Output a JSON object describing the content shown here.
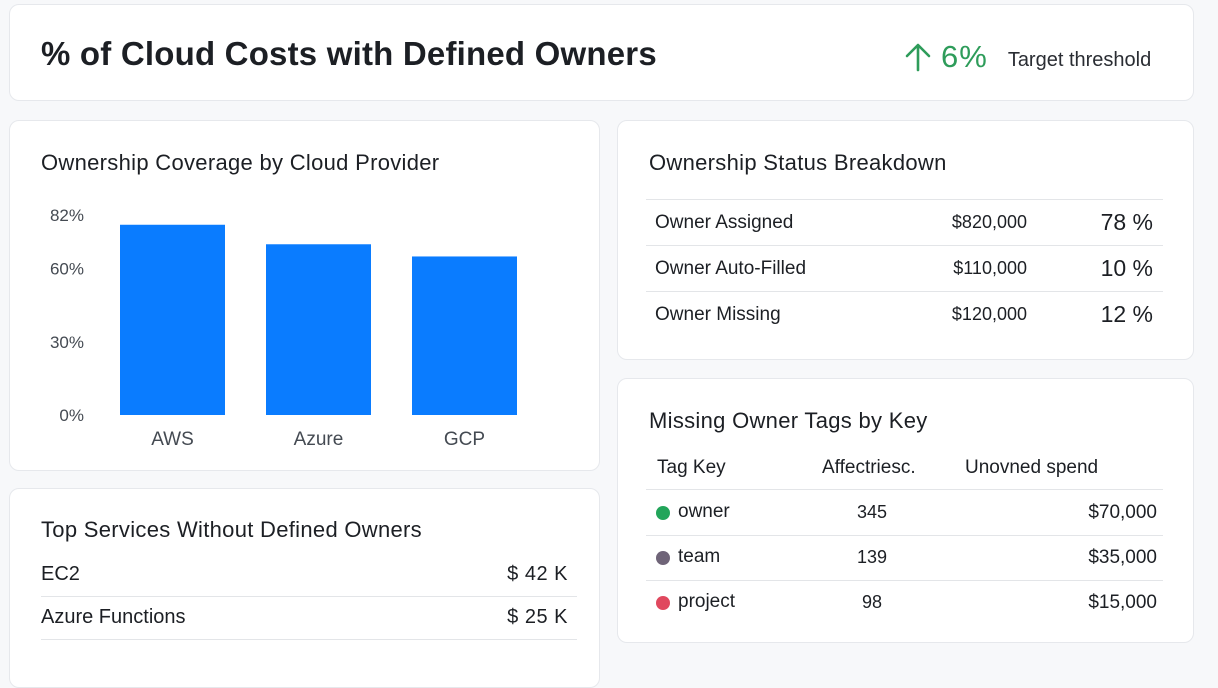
{
  "header": {
    "title": "% of Cloud Costs with Defined Owners",
    "kpi_value": "6%",
    "kpi_label": "Target threshold",
    "kpi_color": "#2e9c5a"
  },
  "coverage_card": {
    "title": "Ownership Coverage by Cloud Provider"
  },
  "chart_data": {
    "type": "bar",
    "categories": [
      "AWS",
      "Azure",
      "GCP"
    ],
    "values": [
      78,
      70,
      65
    ],
    "tick_labels": [
      "0%",
      "30%",
      "60%",
      "82%"
    ],
    "ylim": [
      0,
      82
    ],
    "bar_color": "#0a7cff",
    "grid": false
  },
  "status_card": {
    "title": "Ownership Status Breakdown",
    "rows": [
      {
        "name": "Owner Assigned",
        "amount": "$820,000",
        "pct": "78 %"
      },
      {
        "name": "Owner Auto-Filled",
        "amount": "$110,000",
        "pct": "10 %"
      },
      {
        "name": "Owner Missing",
        "amount": "$120,000",
        "pct": "12 %"
      }
    ]
  },
  "tags_card": {
    "title": "Missing Owner Tags by Key",
    "headers": {
      "key": "Tag Key",
      "affected": "Affectriesc.",
      "spend": "Unovned spend"
    },
    "rows": [
      {
        "key": "owner",
        "affected": "345",
        "spend": "$70,000",
        "color": "#22a55a"
      },
      {
        "key": "team",
        "affected": "139",
        "spend": "$35,000",
        "color": "#6f6478"
      },
      {
        "key": "project",
        "affected": "98",
        "spend": "$15,000",
        "color": "#e0485e"
      }
    ]
  },
  "services_card": {
    "title": "Top Services Without Defined Owners",
    "rows": [
      {
        "name": "EC2",
        "value": "$ 42 K"
      },
      {
        "name": "Azure Functions",
        "value": "$ 25 K"
      }
    ]
  }
}
